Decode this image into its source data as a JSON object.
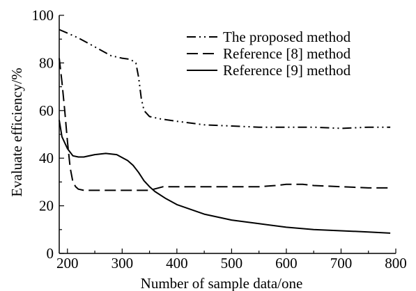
{
  "chart_data": {
    "type": "line",
    "title": "",
    "xlabel": "Number of sample data/one",
    "ylabel": "Evaluate efficiency/%",
    "xlim": [
      185,
      800
    ],
    "ylim": [
      0,
      100
    ],
    "xticks": [
      200,
      300,
      400,
      500,
      600,
      700,
      800
    ],
    "yticks": [
      0,
      20,
      40,
      60,
      80,
      100
    ],
    "grid": false,
    "legend_position": "top-right",
    "series": [
      {
        "name": "The proposed method",
        "style": "dashdotdot",
        "color": "#000000",
        "x": [
          185,
          200,
          220,
          240,
          260,
          280,
          300,
          315,
          325,
          330,
          335,
          340,
          350,
          370,
          400,
          450,
          500,
          550,
          600,
          650,
          700,
          750,
          790
        ],
        "y": [
          94,
          92.5,
          90.5,
          88,
          85.5,
          83,
          82,
          81.5,
          80,
          74,
          65,
          60,
          57.5,
          56.5,
          55.5,
          54,
          53.5,
          53,
          53,
          53,
          52.5,
          53,
          53
        ]
      },
      {
        "name": "Reference [8] method",
        "style": "dashed",
        "color": "#000000",
        "x": [
          185,
          190,
          195,
          200,
          205,
          210,
          215,
          220,
          230,
          250,
          300,
          350,
          375,
          400,
          450,
          500,
          550,
          580,
          600,
          630,
          650,
          700,
          750,
          790
        ],
        "y": [
          82,
          72,
          60,
          47,
          36,
          30,
          28,
          27,
          26.5,
          26.5,
          26.5,
          26.5,
          28,
          28,
          28,
          28,
          28,
          28.5,
          29,
          29,
          28.5,
          28,
          27.5,
          27.5
        ]
      },
      {
        "name": "Reference [9] method",
        "style": "solid",
        "color": "#000000",
        "x": [
          185,
          190,
          200,
          210,
          220,
          230,
          250,
          270,
          290,
          310,
          320,
          330,
          340,
          350,
          360,
          380,
          400,
          450,
          500,
          550,
          600,
          650,
          700,
          750,
          790
        ],
        "y": [
          56,
          49,
          44,
          41,
          40.5,
          40.5,
          41.5,
          42,
          41.5,
          39,
          37,
          34,
          30.5,
          28,
          26,
          23,
          20.5,
          16.5,
          14,
          12.5,
          11,
          10,
          9.5,
          9,
          8.5
        ]
      }
    ]
  }
}
